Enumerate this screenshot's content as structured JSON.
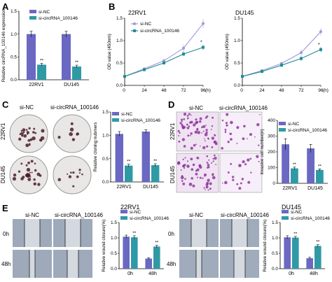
{
  "panels": {
    "A": "A",
    "B": "B",
    "C": "C",
    "D": "D",
    "E": "E"
  },
  "legend": {
    "nc": "si-NC",
    "circ": "si-circRNA_100146"
  },
  "colors": {
    "nc": "#6a68c2",
    "circ": "#2f9aa6",
    "nc_line": "#9c9ad6",
    "circ_line": "#1f8c96",
    "crystal_violet": "#8a2a9a"
  },
  "sig": "**",
  "sig_single": "*",
  "photo_labels": {
    "c_row1": "22RV1",
    "c_row2": "DU145",
    "d_row1": "22RV1",
    "d_row2": "DU145",
    "e_left_title": "22RV1",
    "e_right_title": "DU145",
    "e_time1": "0h",
    "e_time2": "48h"
  },
  "chart_data": [
    {
      "panel": "A",
      "type": "bar",
      "ylabel": "Relative circRNA_100146 expression",
      "categories": [
        "22RV1",
        "DU145"
      ],
      "ylim": [
        0,
        1.5
      ],
      "yticks": [
        "0.0",
        "0.5",
        "1.0",
        "1.5"
      ],
      "series": [
        {
          "name": "si-NC",
          "values": [
            1.0,
            1.0
          ],
          "errors": [
            0.06,
            0.06
          ]
        },
        {
          "name": "si-circRNA_100146",
          "values": [
            0.33,
            0.29
          ],
          "errors": [
            0.03,
            0.03
          ]
        }
      ]
    },
    {
      "panel": "B-22RV1",
      "type": "line",
      "title": "22RV1",
      "ylabel": "OD value (450nm)",
      "xlabel": "(h)",
      "x": [
        0,
        24,
        48,
        72,
        96
      ],
      "ylim": [
        0,
        1.5
      ],
      "yticks": [
        "0.0",
        "0.5",
        "1.0",
        "1.5"
      ],
      "series": [
        {
          "name": "si-NC",
          "values": [
            0.2,
            0.37,
            0.55,
            0.83,
            1.38
          ],
          "errors": [
            0.02,
            0.03,
            0.04,
            0.08,
            0.1
          ]
        },
        {
          "name": "si-circRNA_100146",
          "values": [
            0.2,
            0.35,
            0.5,
            0.7,
            0.85
          ],
          "errors": [
            0.02,
            0.03,
            0.03,
            0.05,
            0.06
          ]
        }
      ]
    },
    {
      "panel": "B-DU145",
      "type": "line",
      "title": "DU145",
      "ylabel": "OD value (450nm)",
      "xlabel": "(h)",
      "x": [
        0,
        24,
        48,
        72,
        96
      ],
      "ylim": [
        0,
        1.5
      ],
      "yticks": [
        "0.0",
        "0.5",
        "1.0",
        "1.5"
      ],
      "series": [
        {
          "name": "si-NC",
          "values": [
            0.2,
            0.33,
            0.49,
            0.73,
            1.2
          ],
          "errors": [
            0.02,
            0.03,
            0.04,
            0.07,
            0.08
          ]
        },
        {
          "name": "si-circRNA_100146",
          "values": [
            0.2,
            0.31,
            0.45,
            0.6,
            0.8
          ],
          "errors": [
            0.02,
            0.03,
            0.03,
            0.05,
            0.06
          ]
        }
      ]
    },
    {
      "panel": "C",
      "type": "bar",
      "ylabel": "Relative cloning nubmers",
      "categories": [
        "22RV1",
        "DU145"
      ],
      "ylim": [
        0,
        1.5
      ],
      "yticks": [
        "0.0",
        "0.5",
        "1.0",
        "1.5"
      ],
      "series": [
        {
          "name": "si-NC",
          "values": [
            1.03,
            1.08
          ],
          "errors": [
            0.05,
            0.04
          ]
        },
        {
          "name": "si-circRNA_100146",
          "values": [
            0.35,
            0.36
          ],
          "errors": [
            0.03,
            0.03
          ]
        }
      ]
    },
    {
      "panel": "D",
      "type": "bar",
      "ylabel": "Invasive cell number(n)",
      "categories": [
        "22RV1",
        "DU145"
      ],
      "ylim": [
        0,
        400
      ],
      "yticks": [
        "0",
        "100",
        "200",
        "300",
        "400"
      ],
      "series": [
        {
          "name": "si-NC",
          "values": [
            248,
            222
          ],
          "errors": [
            35,
            25
          ]
        },
        {
          "name": "si-circRNA_100146",
          "values": [
            95,
            85
          ],
          "errors": [
            8,
            7
          ]
        }
      ]
    },
    {
      "panel": "E-22RV1",
      "type": "bar",
      "ylabel": "Relative wound closure(%)",
      "categories": [
        "0h",
        "48h"
      ],
      "ylim": [
        0,
        1.5
      ],
      "yticks": [
        "0.0",
        "0.5",
        "1.0",
        "1.5"
      ],
      "series": [
        {
          "name": "si-NC",
          "values": [
            1.04,
            0.33
          ],
          "errors": [
            0.05,
            0.03
          ]
        },
        {
          "name": "si-circRNA_100146",
          "values": [
            1.02,
            0.72
          ],
          "errors": [
            0.05,
            0.04
          ]
        }
      ]
    },
    {
      "panel": "E-DU145",
      "type": "bar",
      "ylabel": "Relative wound closure(%)",
      "categories": [
        "0h",
        "48h"
      ],
      "ylim": [
        0,
        1.5
      ],
      "yticks": [
        "0.0",
        "0.5",
        "1.0",
        "1.5"
      ],
      "series": [
        {
          "name": "si-NC",
          "values": [
            1.02,
            0.34
          ],
          "errors": [
            0.05,
            0.03
          ]
        },
        {
          "name": "si-circRNA_100146",
          "values": [
            1.01,
            0.74
          ],
          "errors": [
            0.04,
            0.04
          ]
        }
      ]
    }
  ]
}
